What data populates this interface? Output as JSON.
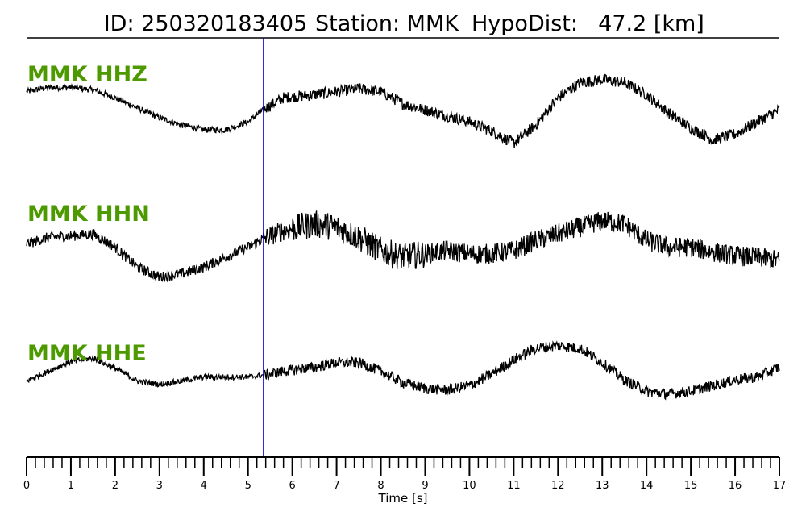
{
  "header": {
    "id_label": "ID: 250320183405",
    "station_label": "Station: MMK",
    "dist_label": "HypoDist:",
    "dist_value": "47.2 [km]"
  },
  "colors": {
    "trace": "#000000",
    "label": "#4c9a00",
    "pick": "#0000cc"
  },
  "chart_data": {
    "type": "line",
    "xlabel": "Time [s]",
    "xlim": [
      0,
      17
    ],
    "x_major_ticks": [
      "0",
      "1",
      "2",
      "3",
      "4",
      "5",
      "6",
      "7",
      "8",
      "9",
      "10",
      "11",
      "12",
      "13",
      "14",
      "15",
      "16",
      "17"
    ],
    "x_minor_step": 0.2,
    "pick_time": 5.35,
    "series": [
      {
        "name": "MMK HHZ",
        "noise": 0.05,
        "x": [
          0,
          0.5,
          1.0,
          1.5,
          2.0,
          2.5,
          3.0,
          3.5,
          4.0,
          4.5,
          5.0,
          5.35,
          5.8,
          6.5,
          7.0,
          7.5,
          8.0,
          8.5,
          9.0,
          9.5,
          10.0,
          10.5,
          11.0,
          11.5,
          12.0,
          12.5,
          13.0,
          13.5,
          14.0,
          14.5,
          15.0,
          15.5,
          16.0,
          16.5,
          17.0
        ],
        "y": [
          0.35,
          0.42,
          0.42,
          0.38,
          0.25,
          0.08,
          -0.08,
          -0.2,
          -0.28,
          -0.28,
          -0.15,
          0.05,
          0.25,
          0.3,
          0.35,
          0.4,
          0.35,
          0.15,
          0.05,
          -0.05,
          -0.15,
          -0.3,
          -0.5,
          -0.2,
          0.25,
          0.5,
          0.55,
          0.5,
          0.3,
          0.0,
          -0.25,
          -0.45,
          -0.35,
          -0.15,
          0.05
        ]
      },
      {
        "name": "MMK HHN",
        "noise": 0.08,
        "x": [
          0,
          0.5,
          1.0,
          1.5,
          2.0,
          2.5,
          3.0,
          3.5,
          4.0,
          4.5,
          5.0,
          5.35,
          5.8,
          6.5,
          7.0,
          7.5,
          8.0,
          8.5,
          9.0,
          9.5,
          10.0,
          10.5,
          11.0,
          11.5,
          12.0,
          12.5,
          13.0,
          13.5,
          14.0,
          14.5,
          15.0,
          15.5,
          16.0,
          16.5,
          17.0
        ],
        "y": [
          0.0,
          0.1,
          0.12,
          0.15,
          -0.05,
          -0.35,
          -0.5,
          -0.45,
          -0.35,
          -0.2,
          -0.05,
          0.08,
          0.2,
          0.3,
          0.25,
          0.1,
          -0.1,
          -0.2,
          -0.15,
          -0.1,
          -0.15,
          -0.15,
          -0.1,
          0.05,
          0.15,
          0.25,
          0.35,
          0.3,
          0.05,
          -0.05,
          -0.05,
          -0.12,
          -0.18,
          -0.2,
          -0.25
        ]
      },
      {
        "name": "MMK HHE",
        "noise": 0.05,
        "x": [
          0,
          0.5,
          1.0,
          1.5,
          2.0,
          2.5,
          3.0,
          3.5,
          4.0,
          4.5,
          5.0,
          5.35,
          5.8,
          6.5,
          7.0,
          7.5,
          8.0,
          8.5,
          9.0,
          9.5,
          10.0,
          10.5,
          11.0,
          11.5,
          12.0,
          12.5,
          13.0,
          13.5,
          14.0,
          14.5,
          15.0,
          15.5,
          16.0,
          16.5,
          17.0
        ],
        "y": [
          -0.12,
          0.05,
          0.22,
          0.28,
          0.1,
          -0.12,
          -0.18,
          -0.12,
          -0.05,
          -0.05,
          -0.05,
          -0.02,
          0.05,
          0.12,
          0.2,
          0.2,
          0.05,
          -0.15,
          -0.25,
          -0.28,
          -0.2,
          0.0,
          0.25,
          0.45,
          0.5,
          0.45,
          0.2,
          -0.1,
          -0.3,
          -0.35,
          -0.3,
          -0.2,
          -0.1,
          -0.05,
          0.12
        ]
      }
    ]
  }
}
